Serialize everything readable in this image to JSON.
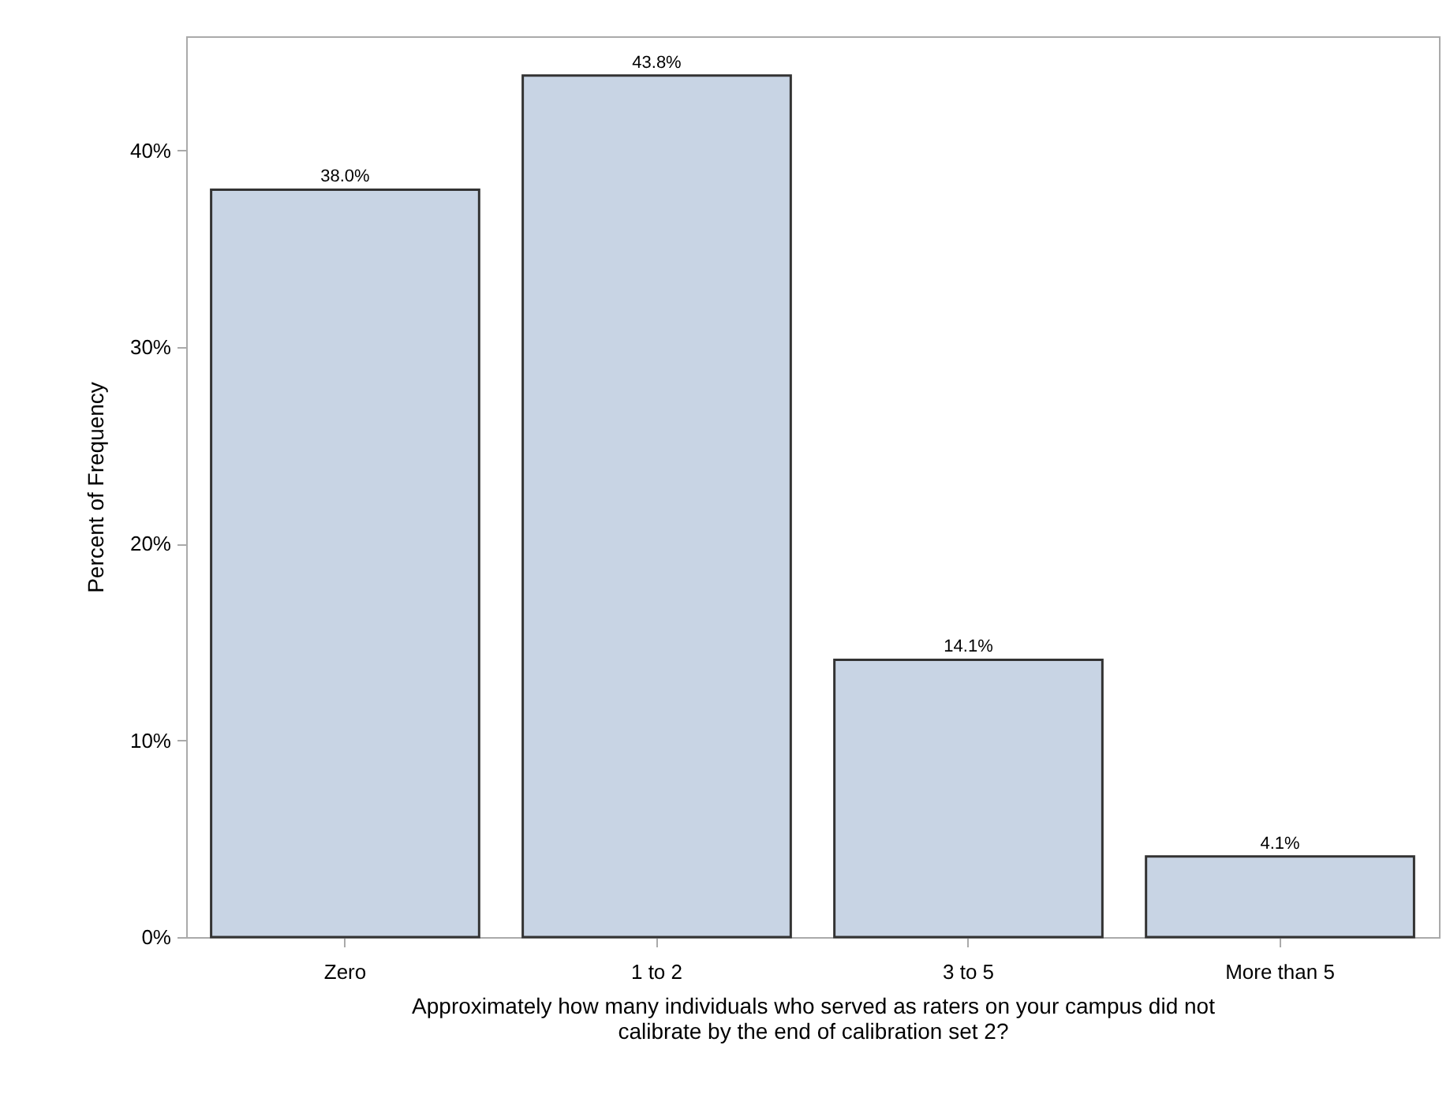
{
  "chart_data": {
    "type": "bar",
    "xlabel": "Approximately how many individuals who served as raters on your campus did not calibrate by the end of calibration set 2?",
    "ylabel": "Percent of Frequency",
    "categories": [
      "Zero",
      "1 to 2",
      "3 to 5",
      "More than 5"
    ],
    "values": [
      38.0,
      43.8,
      14.1,
      4.1
    ],
    "value_labels": [
      "38.0%",
      "43.8%",
      "14.1%",
      "4.1%"
    ],
    "color": "#c8d4e4",
    "ylim": [
      0,
      45.8
    ],
    "yticks": [
      {
        "value": 0,
        "label": "0%"
      },
      {
        "value": 10,
        "label": "10%"
      },
      {
        "value": 20,
        "label": "20%"
      },
      {
        "value": 30,
        "label": "30%"
      },
      {
        "value": 40,
        "label": "40%"
      }
    ],
    "grid": false
  }
}
